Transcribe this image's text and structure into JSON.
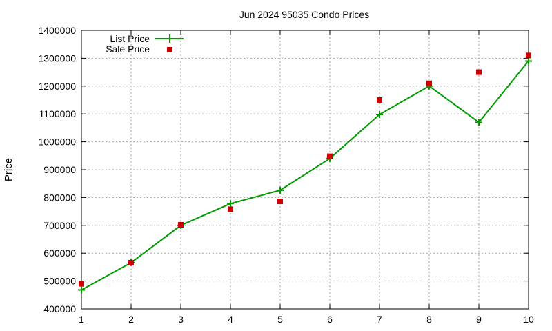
{
  "chart_data": {
    "type": "line",
    "title": "Jun 2024 95035 Condo Prices",
    "xlabel": "",
    "ylabel": "Price",
    "x": [
      1,
      2,
      3,
      4,
      5,
      6,
      7,
      8,
      9,
      10
    ],
    "xlim": [
      1,
      10
    ],
    "ylim": [
      400000,
      1400000
    ],
    "xticks": [
      1,
      2,
      3,
      4,
      5,
      6,
      7,
      8,
      9,
      10
    ],
    "yticks": [
      400000,
      500000,
      600000,
      700000,
      800000,
      900000,
      1000000,
      1100000,
      1200000,
      1300000,
      1400000
    ],
    "grid": true,
    "legend_position": "top-left",
    "series": [
      {
        "name": "List Price",
        "style": "line-with-plus-markers",
        "color": "#009900",
        "values": [
          468000,
          566000,
          700000,
          778000,
          826000,
          940000,
          1098000,
          1200000,
          1070000,
          1290000
        ]
      },
      {
        "name": "Sale Price",
        "style": "square-markers",
        "color": "#cc0000",
        "values": [
          490000,
          566000,
          702000,
          758000,
          786000,
          948000,
          1150000,
          1210000,
          1250000,
          1310000
        ]
      }
    ]
  }
}
